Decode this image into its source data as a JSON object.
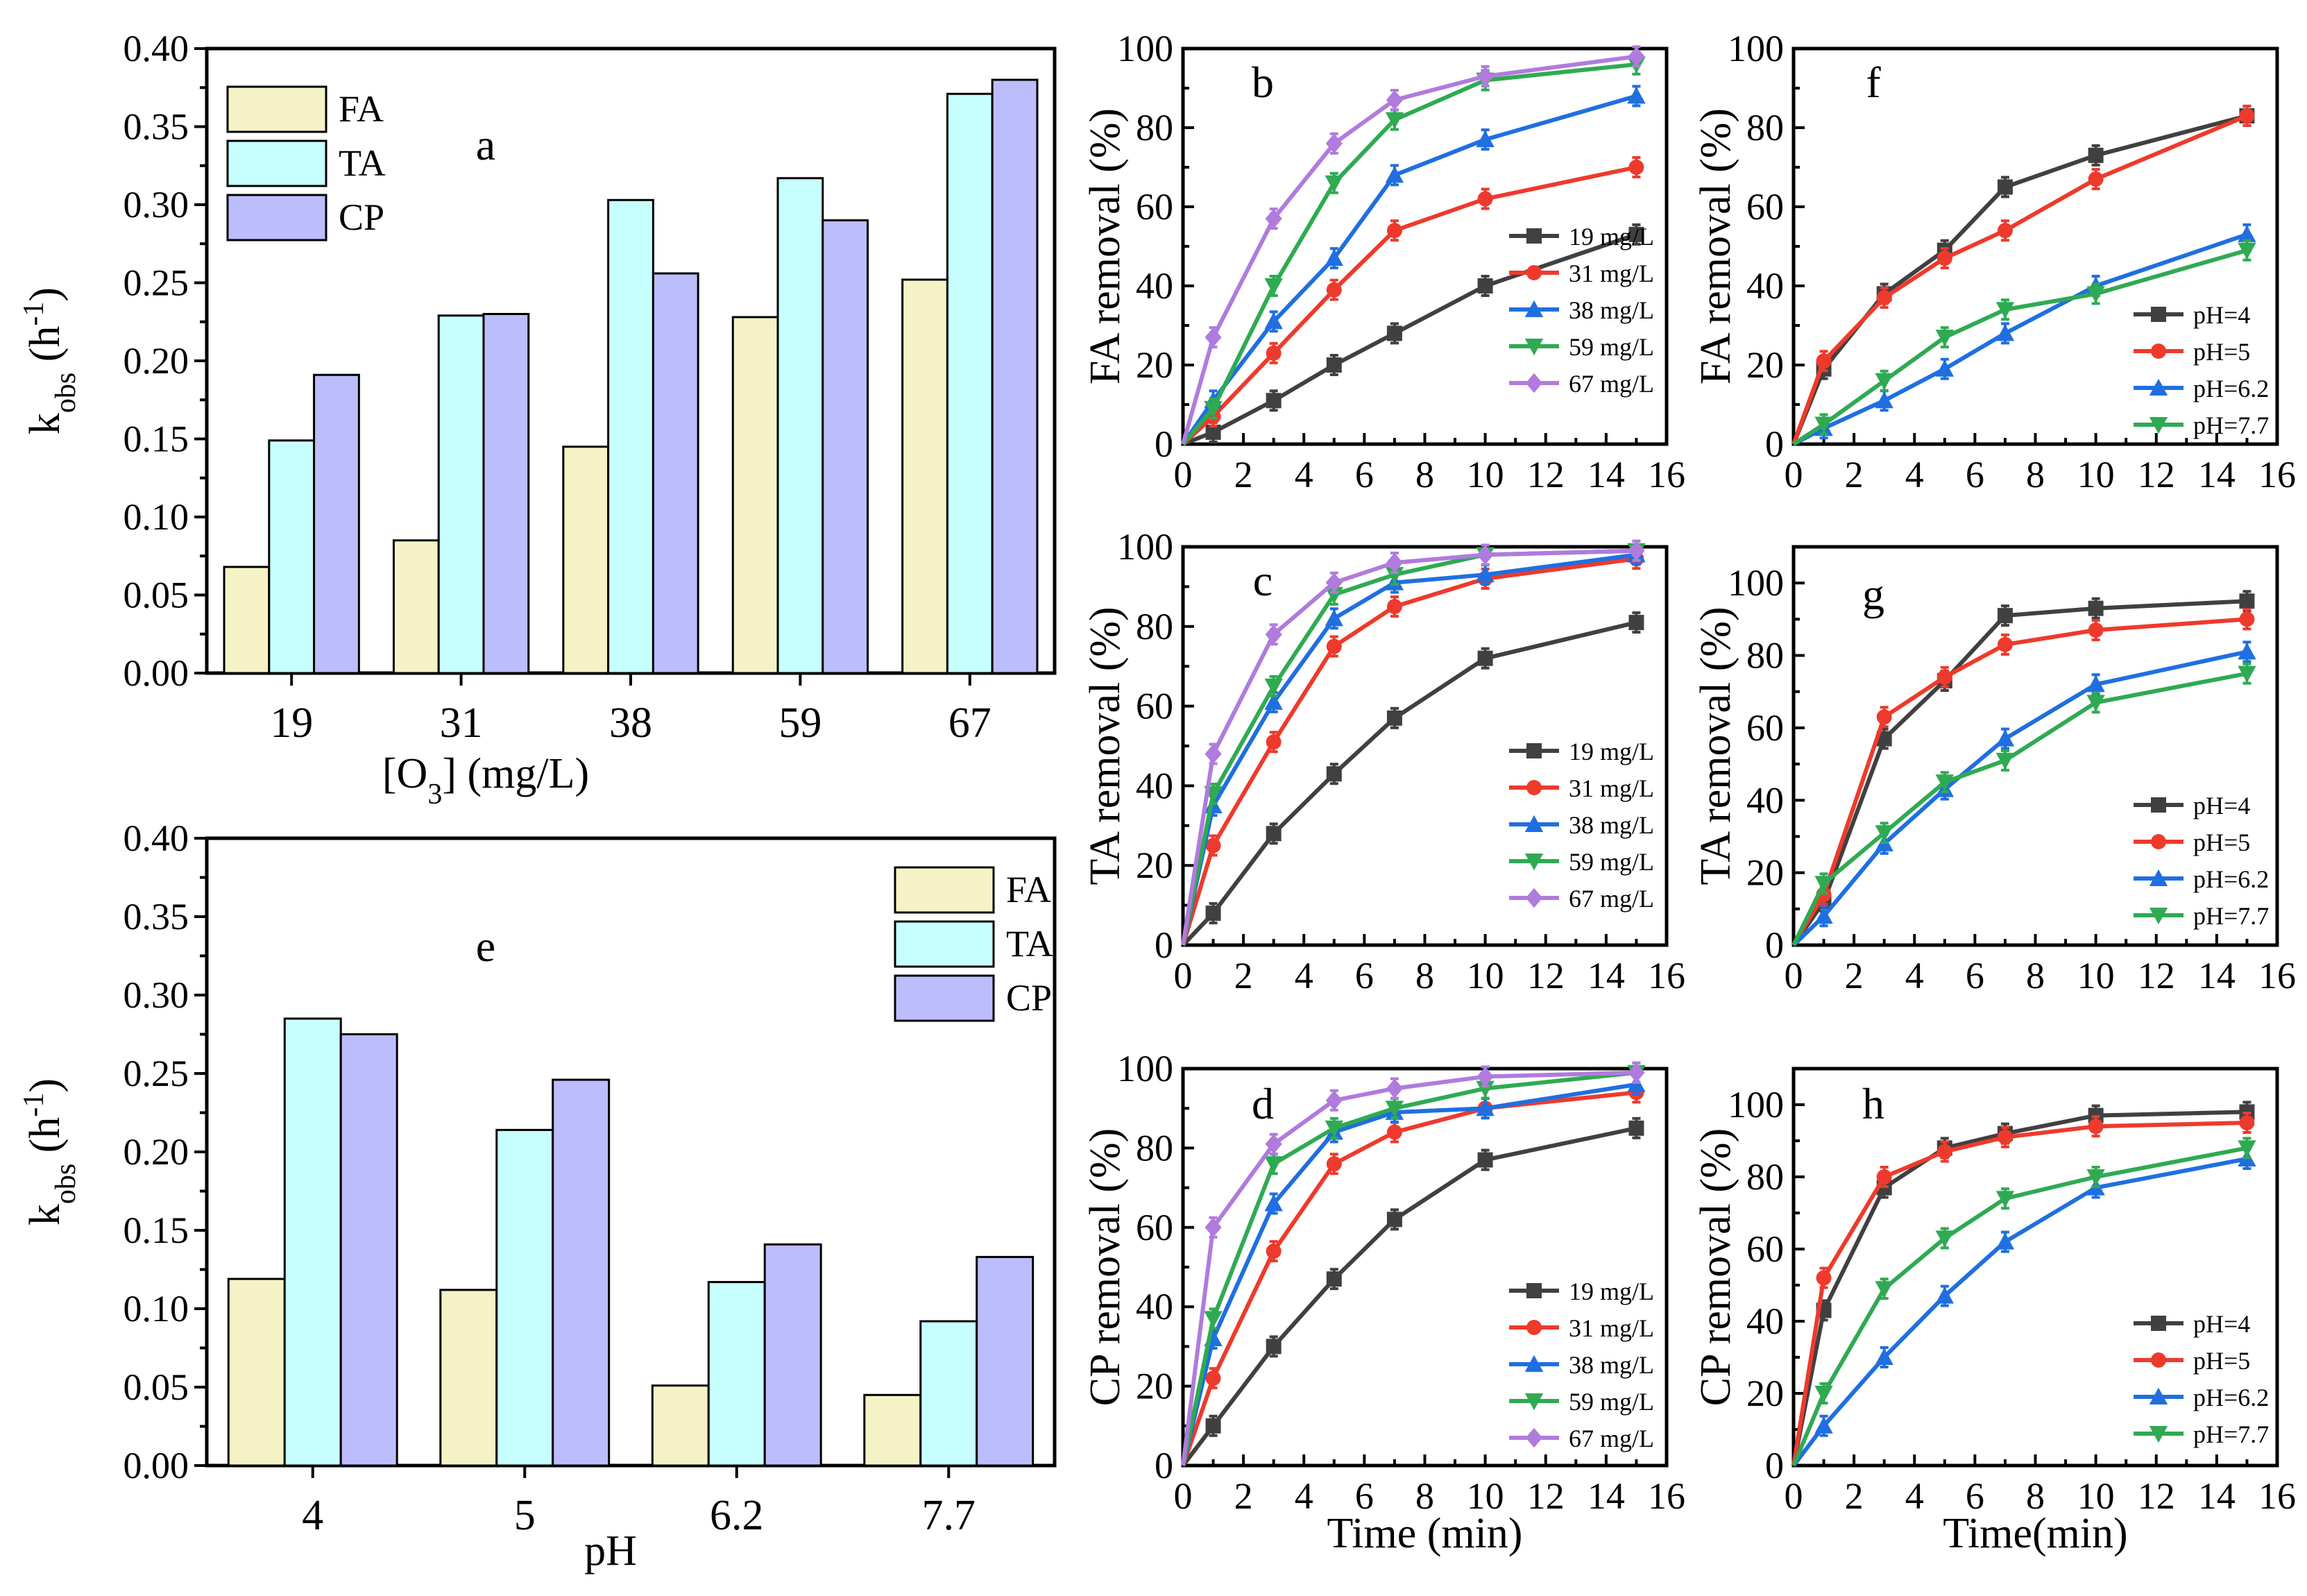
{
  "colors": {
    "FA": "#f5f3c6",
    "TA": "#c7ffff",
    "CP": "#bcbdfc",
    "s19": "#404040",
    "s31": "#ee3a2c",
    "s38": "#1f6fe0",
    "s59": "#2faa52",
    "s67": "#b07bdd"
  },
  "chart_data": [
    {
      "panel": "a",
      "type": "bar",
      "categories": [
        "19",
        "31",
        "38",
        "59",
        "67"
      ],
      "series": [
        {
          "name": "FA",
          "values": [
            0.068,
            0.085,
            0.145,
            0.228,
            0.252
          ]
        },
        {
          "name": "TA",
          "values": [
            0.149,
            0.229,
            0.303,
            0.317,
            0.371
          ]
        },
        {
          "name": "CP",
          "values": [
            0.191,
            0.23,
            0.256,
            0.29,
            0.38
          ]
        }
      ],
      "xlabel": "[O3] (mg/L)",
      "ylabel": "kobs (h-1)",
      "ylim": [
        0,
        0.4
      ],
      "yticks": [
        "0.00",
        "0.05",
        "0.10",
        "0.15",
        "0.20",
        "0.25",
        "0.30",
        "0.35",
        "0.40"
      ],
      "legend_position": "top-left"
    },
    {
      "panel": "e",
      "type": "bar",
      "categories": [
        "4",
        "5",
        "6.2",
        "7.7"
      ],
      "series": [
        {
          "name": "FA",
          "values": [
            0.119,
            0.112,
            0.051,
            0.045
          ]
        },
        {
          "name": "TA",
          "values": [
            0.285,
            0.214,
            0.117,
            0.092
          ]
        },
        {
          "name": "CP",
          "values": [
            0.275,
            0.246,
            0.141,
            0.133
          ]
        }
      ],
      "xlabel": "pH",
      "ylabel": "kobs (h-1)",
      "ylim": [
        0,
        0.4
      ],
      "yticks": [
        "0.00",
        "0.05",
        "0.10",
        "0.15",
        "0.20",
        "0.25",
        "0.30",
        "0.35",
        "0.40"
      ],
      "legend_position": "top-right"
    },
    {
      "panel": "b",
      "type": "line",
      "x": [
        0,
        1,
        3,
        5,
        7,
        10,
        15
      ],
      "series": [
        {
          "name": "19 mg/L",
          "values": [
            0,
            3,
            11,
            20,
            28,
            40,
            53
          ]
        },
        {
          "name": "31 mg/L",
          "values": [
            0,
            7,
            23,
            39,
            54,
            62,
            70
          ]
        },
        {
          "name": "38 mg/L",
          "values": [
            0,
            11,
            31,
            47,
            68,
            77,
            88
          ]
        },
        {
          "name": "59 mg/L",
          "values": [
            0,
            9,
            40,
            66,
            82,
            92,
            96
          ]
        },
        {
          "name": "67 mg/L",
          "values": [
            0,
            27,
            57,
            76,
            87,
            93,
            98
          ]
        }
      ],
      "ylabel": "FA removal  (%)",
      "xlabel": "",
      "xlim": [
        0,
        16
      ],
      "ylim": [
        0,
        100
      ],
      "xticks": [
        "0",
        "2",
        "4",
        "6",
        "8",
        "10",
        "12",
        "14",
        "16"
      ],
      "yticks": [
        "0",
        "20",
        "40",
        "60",
        "80",
        "100"
      ],
      "legend_position": "bottom-right"
    },
    {
      "panel": "c",
      "type": "line",
      "x": [
        0,
        1,
        3,
        5,
        7,
        10,
        15
      ],
      "series": [
        {
          "name": "19 mg/L",
          "values": [
            0,
            8,
            28,
            43,
            57,
            72,
            81
          ]
        },
        {
          "name": "31 mg/L",
          "values": [
            0,
            25,
            51,
            75,
            85,
            92,
            97
          ]
        },
        {
          "name": "38 mg/L",
          "values": [
            0,
            35,
            61,
            82,
            91,
            93,
            98
          ]
        },
        {
          "name": "59 mg/L",
          "values": [
            0,
            38,
            65,
            88,
            93,
            98,
            99
          ]
        },
        {
          "name": "67 mg/L",
          "values": [
            0,
            48,
            78,
            91,
            96,
            98,
            99
          ]
        }
      ],
      "ylabel": "TA removal  (%)",
      "xlabel": "",
      "xlim": [
        0,
        16
      ],
      "ylim": [
        0,
        100
      ],
      "xticks": [
        "0",
        "2",
        "4",
        "6",
        "8",
        "10",
        "12",
        "14",
        "16"
      ],
      "yticks": [
        "0",
        "20",
        "40",
        "60",
        "80",
        "100"
      ],
      "legend_position": "bottom-right"
    },
    {
      "panel": "d",
      "type": "line",
      "x": [
        0,
        1,
        3,
        5,
        7,
        10,
        15
      ],
      "series": [
        {
          "name": "19 mg/L",
          "values": [
            0,
            10,
            30,
            47,
            62,
            77,
            85
          ]
        },
        {
          "name": "31 mg/L",
          "values": [
            0,
            22,
            54,
            76,
            84,
            90,
            94
          ]
        },
        {
          "name": "38 mg/L",
          "values": [
            0,
            32,
            66,
            84,
            89,
            90,
            96
          ]
        },
        {
          "name": "59 mg/L",
          "values": [
            0,
            37,
            76,
            85,
            90,
            95,
            99
          ]
        },
        {
          "name": "67 mg/L",
          "values": [
            0,
            60,
            81,
            92,
            95,
            98,
            99
          ]
        }
      ],
      "ylabel": "CP removal (%)",
      "xlabel": "Time (min)",
      "xlim": [
        0,
        16
      ],
      "ylim": [
        0,
        100
      ],
      "xticks": [
        "0",
        "2",
        "4",
        "6",
        "8",
        "10",
        "12",
        "14",
        "16"
      ],
      "yticks": [
        "0",
        "20",
        "40",
        "60",
        "80",
        "100"
      ],
      "legend_position": "bottom-right"
    },
    {
      "panel": "f",
      "type": "line",
      "x": [
        0,
        1,
        3,
        5,
        7,
        10,
        15
      ],
      "series": [
        {
          "name": "pH=4",
          "values": [
            0,
            19,
            38,
            49,
            65,
            73,
            83
          ]
        },
        {
          "name": "pH=5",
          "values": [
            0,
            21,
            37,
            47,
            54,
            67,
            83
          ]
        },
        {
          "name": "pH=6.2",
          "values": [
            0,
            4,
            11,
            19,
            28,
            40,
            53
          ]
        },
        {
          "name": "pH=7.7",
          "values": [
            0,
            5,
            16,
            27,
            34,
            38,
            49
          ]
        }
      ],
      "ylabel": "FA removal (%)",
      "xlabel": "",
      "xlim": [
        0,
        16
      ],
      "ylim": [
        0,
        100
      ],
      "xticks": [
        "0",
        "2",
        "4",
        "6",
        "8",
        "10",
        "12",
        "14",
        "16"
      ],
      "yticks": [
        "0",
        "20",
        "40",
        "60",
        "80",
        "100"
      ],
      "legend_position": "bottom-right"
    },
    {
      "panel": "g",
      "type": "line",
      "x": [
        0,
        1,
        3,
        5,
        7,
        10,
        15
      ],
      "series": [
        {
          "name": "pH=4",
          "values": [
            0,
            12,
            57,
            73,
            91,
            93,
            95
          ]
        },
        {
          "name": "pH=5",
          "values": [
            0,
            14,
            63,
            74,
            83,
            87,
            90
          ]
        },
        {
          "name": "pH=6.2",
          "values": [
            0,
            8,
            28,
            43,
            57,
            72,
            81
          ]
        },
        {
          "name": "pH=7.7",
          "values": [
            0,
            17,
            31,
            45,
            51,
            67,
            75
          ]
        }
      ],
      "ylabel": "TA removal (%)",
      "xlabel": "",
      "xlim": [
        0,
        16
      ],
      "ylim": [
        0,
        110
      ],
      "xticks": [
        "0",
        "2",
        "4",
        "6",
        "8",
        "10",
        "12",
        "14",
        "16"
      ],
      "yticks": [
        "0",
        "20",
        "40",
        "60",
        "80",
        "100"
      ],
      "legend_position": "bottom-right"
    },
    {
      "panel": "h",
      "type": "line",
      "x": [
        0,
        1,
        3,
        5,
        7,
        10,
        15
      ],
      "series": [
        {
          "name": "pH=4",
          "values": [
            0,
            43,
            77,
            88,
            92,
            97,
            98
          ]
        },
        {
          "name": "pH=5",
          "values": [
            0,
            52,
            80,
            87,
            91,
            94,
            95
          ]
        },
        {
          "name": "pH=6.2",
          "values": [
            0,
            11,
            30,
            47,
            62,
            77,
            85
          ]
        },
        {
          "name": "pH=7.7",
          "values": [
            0,
            20,
            49,
            63,
            74,
            80,
            88
          ]
        }
      ],
      "ylabel": "CP removal (%)",
      "xlabel": "Time(min)",
      "xlim": [
        0,
        16
      ],
      "ylim": [
        0,
        110
      ],
      "xticks": [
        "0",
        "2",
        "4",
        "6",
        "8",
        "10",
        "12",
        "14",
        "16"
      ],
      "yticks": [
        "0",
        "20",
        "40",
        "60",
        "80",
        "100"
      ],
      "legend_position": "bottom-right"
    }
  ]
}
